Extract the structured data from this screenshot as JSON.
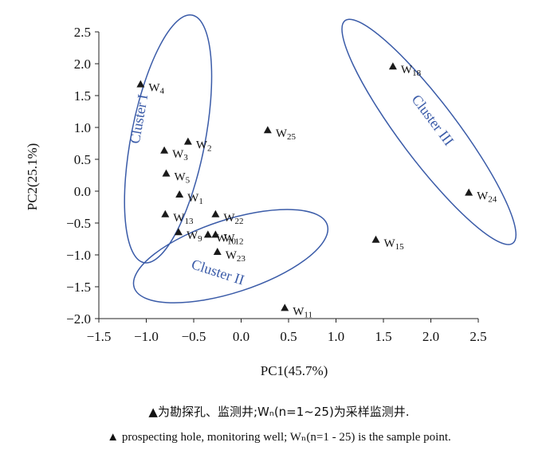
{
  "chart_data": {
    "type": "scatter",
    "xlabel": "PC1(45.7%)",
    "ylabel": "PC2(25.1%)",
    "xlim": [
      -1.5,
      2.5
    ],
    "ylim": [
      -2.0,
      2.5
    ],
    "xticks": [
      -1.5,
      -1.0,
      -0.5,
      0.0,
      0.5,
      1.0,
      1.5,
      2.0,
      2.5
    ],
    "yticks": [
      -2.0,
      -1.5,
      -1.0,
      -0.5,
      0.0,
      0.5,
      1.0,
      1.5,
      2.0,
      2.5
    ],
    "grid": false,
    "marker": "triangle",
    "marker_color": "#1a1a1a",
    "cluster_color": "#3a5ba8",
    "points": [
      {
        "label": "W1",
        "x": -0.65,
        "y": -0.05
      },
      {
        "label": "W2",
        "x": -0.56,
        "y": 0.78
      },
      {
        "label": "W3",
        "x": -0.81,
        "y": 0.64
      },
      {
        "label": "W4",
        "x": -1.06,
        "y": 1.68
      },
      {
        "label": "W5",
        "x": -0.79,
        "y": 0.28
      },
      {
        "label": "W9",
        "x": -0.66,
        "y": -0.64
      },
      {
        "label": "W10",
        "x": -0.35,
        "y": -0.68
      },
      {
        "label": "W11",
        "x": 0.46,
        "y": -1.83
      },
      {
        "label": "W12",
        "x": -0.27,
        "y": -0.68
      },
      {
        "label": "W13",
        "x": -0.8,
        "y": -0.36
      },
      {
        "label": "W15",
        "x": 1.42,
        "y": -0.76
      },
      {
        "label": "W18",
        "x": 1.6,
        "y": 1.96
      },
      {
        "label": "W22",
        "x": -0.27,
        "y": -0.36
      },
      {
        "label": "W23",
        "x": -0.25,
        "y": -0.95
      },
      {
        "label": "W24",
        "x": 2.4,
        "y": -0.02
      },
      {
        "label": "W25",
        "x": 0.28,
        "y": 0.96
      }
    ],
    "clusters": [
      {
        "label": "Cluster I",
        "cx": -0.77,
        "cy": 0.82,
        "rx": 1.33,
        "ry": 0.58,
        "angle": 79
      },
      {
        "label": "Cluster II",
        "cx": -0.11,
        "cy": -1.02,
        "rx": 1.07,
        "ry": 0.57,
        "angle": 18
      },
      {
        "label": "Cluster III",
        "cx": 1.98,
        "cy": 0.93,
        "rx": 1.47,
        "ry": 0.45,
        "angle": -53
      }
    ]
  },
  "caption": {
    "line_cn": "▲为勘探孔、监测井;Wₙ(n=1~25)为采样监测井.",
    "line_en": "▲ prospecting hole, monitoring well; Wₙ(n=1 - 25) is the sample point."
  }
}
